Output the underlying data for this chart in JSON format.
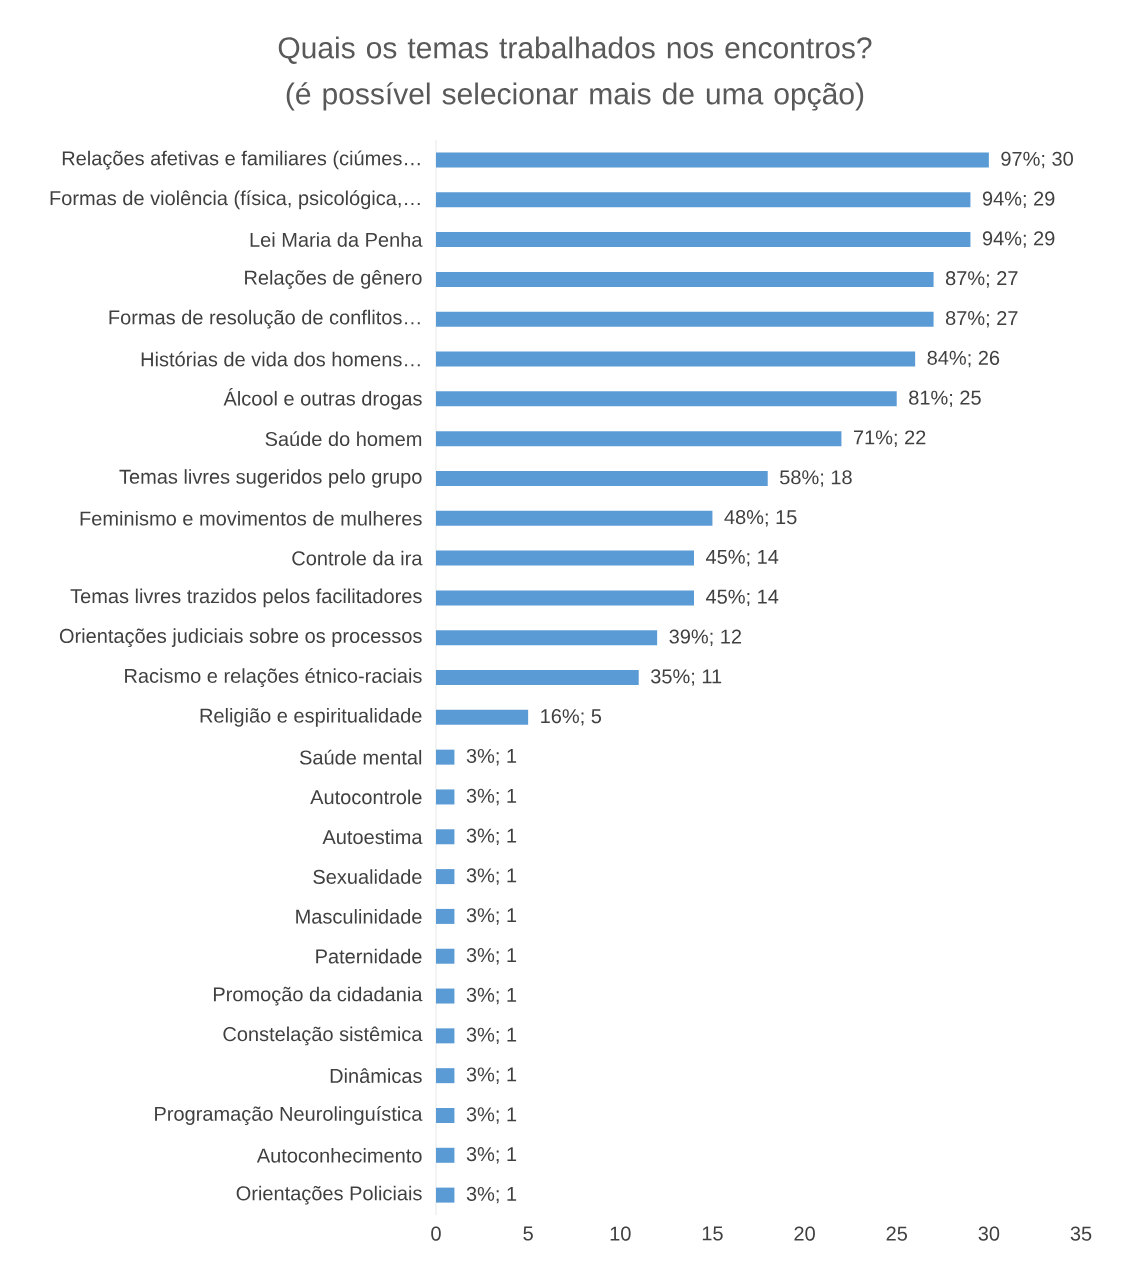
{
  "chart_data": {
    "type": "bar",
    "orientation": "horizontal",
    "title": "Quais os temas trabalhados nos encontros? (é possível selecionar mais de uma opção)",
    "categories": [
      "Relações afetivas e familiares (ciúmes…",
      "Formas de violência (física, psicológica,…",
      "Lei Maria da Penha",
      "Relações de gênero",
      "Formas de resolução de conflitos…",
      "Histórias de vida dos homens…",
      "Álcool e outras drogas",
      "Saúde do homem",
      "Temas livres sugeridos pelo grupo",
      "Feminismo e movimentos de mulheres",
      "Controle da ira",
      "Temas livres trazidos pelos facilitadores",
      "Orientações judiciais sobre os processos",
      "Racismo e relações étnico-raciais",
      "Religião e espiritualidade",
      "Saúde mental",
      "Autocontrole",
      "Autoestima",
      "Sexualidade",
      "Masculinidade",
      "Paternidade",
      "Promoção da cidadania",
      "Constelação sistêmica",
      "Dinâmicas",
      "Programação Neurolinguística",
      "Autoconhecimento",
      "Orientações Policiais"
    ],
    "values": [
      30,
      29,
      29,
      27,
      27,
      26,
      25,
      22,
      18,
      15,
      14,
      14,
      12,
      11,
      5,
      1,
      1,
      1,
      1,
      1,
      1,
      1,
      1,
      1,
      1,
      1,
      1
    ],
    "value_labels": [
      "97%; 30",
      "94%; 29",
      "94%; 29",
      "87%; 27",
      "87%; 27",
      "84%; 26",
      "81%; 25",
      "71%; 22",
      "58%; 18",
      "48%; 15",
      "45%; 14",
      "45%; 14",
      "39%; 12",
      "35%; 11",
      "16%; 5",
      "3%; 1",
      "3%; 1",
      "3%; 1",
      "3%; 1",
      "3%; 1",
      "3%; 1",
      "3%; 1",
      "3%; 1",
      "3%; 1",
      "3%; 1",
      "3%; 1",
      "3%; 1"
    ],
    "color": "#5b9bd5",
    "xlim": [
      0,
      35
    ],
    "xticks": [
      0,
      5,
      10,
      15,
      20,
      25,
      30,
      35
    ]
  }
}
